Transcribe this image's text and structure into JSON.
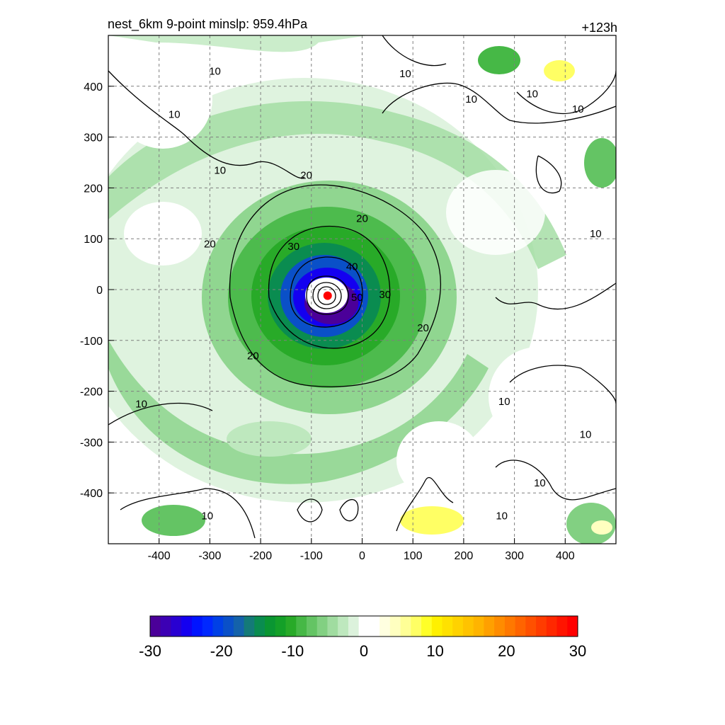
{
  "chart_data": {
    "type": "heatmap",
    "title_left": "nest_6km  9-point minslp: 959.4hPa",
    "title_right": "+123h",
    "xlim": [
      -500,
      500
    ],
    "ylim": [
      -500,
      500
    ],
    "x_ticks": [
      "-400",
      "-300",
      "-200",
      "-100",
      "0",
      "100",
      "200",
      "300",
      "400"
    ],
    "y_ticks": [
      "400",
      "300",
      "200",
      "100",
      "0",
      "-100",
      "-200",
      "-300",
      "-400"
    ],
    "x_tick_values": [
      -400,
      -300,
      -200,
      -100,
      0,
      100,
      200,
      300,
      400
    ],
    "y_tick_values": [
      400,
      300,
      200,
      100,
      0,
      -100,
      -200,
      -300,
      -400
    ],
    "grid": "dashed",
    "storm_center": {
      "x": -68,
      "y": -12,
      "marker": "red dot"
    },
    "contours": {
      "levels": [
        10,
        20,
        30,
        40,
        50
      ],
      "labels": [
        {
          "text": "10",
          "x": -290,
          "y": 430
        },
        {
          "text": "10",
          "x": -370,
          "y": 345
        },
        {
          "text": "10",
          "x": -280,
          "y": 235
        },
        {
          "text": "10",
          "x": 85,
          "y": 425
        },
        {
          "text": "10",
          "x": 215,
          "y": 375
        },
        {
          "text": "10",
          "x": 335,
          "y": 385
        },
        {
          "text": "10",
          "x": 425,
          "y": 355
        },
        {
          "text": "10",
          "x": 460,
          "y": 110
        },
        {
          "text": "10",
          "x": -435,
          "y": -225
        },
        {
          "text": "10",
          "x": -305,
          "y": -445
        },
        {
          "text": "10",
          "x": 280,
          "y": -220
        },
        {
          "text": "10",
          "x": 440,
          "y": -285
        },
        {
          "text": "10",
          "x": 350,
          "y": -380
        },
        {
          "text": "10",
          "x": 275,
          "y": -445
        },
        {
          "text": "20",
          "x": -110,
          "y": 225
        },
        {
          "text": "20",
          "x": 0,
          "y": 140
        },
        {
          "text": "20",
          "x": -300,
          "y": 90
        },
        {
          "text": "20",
          "x": 120,
          "y": -75
        },
        {
          "text": "20",
          "x": -215,
          "y": -130
        },
        {
          "text": "30",
          "x": -135,
          "y": 85
        },
        {
          "text": "30",
          "x": 45,
          "y": -10
        },
        {
          "text": "40",
          "x": -20,
          "y": 45
        },
        {
          "text": "50",
          "x": -10,
          "y": -15
        }
      ]
    },
    "colorbar": {
      "ticks": [
        "-30",
        "-20",
        "-10",
        "0",
        "10",
        "20",
        "30"
      ],
      "range": [
        -30,
        30
      ],
      "colors": [
        "#4b0099",
        "#3c00b4",
        "#2800d2",
        "#1400f0",
        "#0014ff",
        "#0028ff",
        "#0040e6",
        "#0a50c8",
        "#1462aa",
        "#147a78",
        "#0a8c50",
        "#0a9632",
        "#14a028",
        "#28aa28",
        "#46b846",
        "#64c464",
        "#82d082",
        "#a0dca0",
        "#bee8be",
        "#dcf2dc",
        "#ffffff",
        "#ffffff",
        "#ffffe0",
        "#ffffc0",
        "#ffff96",
        "#ffff64",
        "#ffff28",
        "#fff000",
        "#ffe100",
        "#ffd200",
        "#ffc300",
        "#ffb400",
        "#ffa000",
        "#ff8c00",
        "#ff7800",
        "#ff6400",
        "#ff5000",
        "#ff3c00",
        "#ff2800",
        "#ff1400",
        "#ff0000"
      ]
    }
  }
}
